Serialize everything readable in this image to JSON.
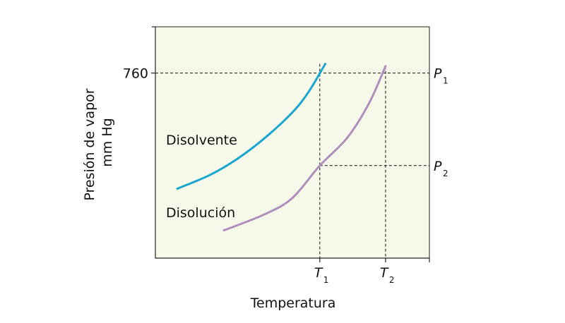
{
  "chart_data": {
    "type": "line",
    "title": "",
    "xlabel": "Temperatura",
    "ylabel_lines": [
      "Presión de vapor",
      "mm Hg"
    ],
    "xlim": [
      0,
      100
    ],
    "ylim": [
      0,
      100
    ],
    "grid": false,
    "colors": {
      "plot_bg": "#f6f9e9",
      "axis": "#222222",
      "guide": "#111111"
    },
    "y_ticks": [
      {
        "label": "760",
        "value": 80
      }
    ],
    "x_markers": [
      {
        "label": "T",
        "sub": "1",
        "value": 60
      },
      {
        "label": "T",
        "sub": "2",
        "value": 84
      }
    ],
    "y_markers": [
      {
        "label": "P",
        "sub": "1",
        "value": 80
      },
      {
        "label": "P",
        "sub": "2",
        "value": 40
      }
    ],
    "series": [
      {
        "name": "Disolvente",
        "color": "#19a6cf",
        "points": [
          [
            8,
            30
          ],
          [
            20,
            36
          ],
          [
            30,
            43
          ],
          [
            40,
            52
          ],
          [
            50,
            63
          ],
          [
            56,
            72
          ],
          [
            62,
            84
          ]
        ]
      },
      {
        "name": "Disolución",
        "color": "#b08fbf",
        "points": [
          [
            25,
            12
          ],
          [
            40,
            19
          ],
          [
            50,
            26
          ],
          [
            60,
            40
          ],
          [
            70,
            52
          ],
          [
            78,
            67
          ],
          [
            84,
            83
          ]
        ]
      }
    ]
  }
}
